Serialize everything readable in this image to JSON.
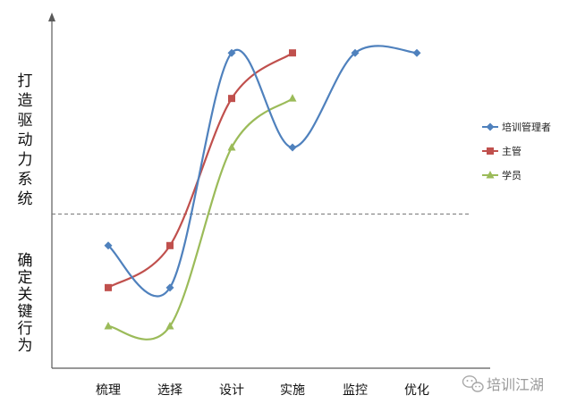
{
  "chart_data": {
    "type": "line",
    "title": "",
    "xlabel": "",
    "ylabel_upper": "打造驱动力系统",
    "ylabel_lower": "确定关键行为",
    "categories": [
      "梳理",
      "选择",
      "设计",
      "实施",
      "监控",
      "优化"
    ],
    "ylim": [
      0,
      10
    ],
    "threshold": 4.4,
    "smooth": true,
    "grid": false,
    "legend_position": "right",
    "series": [
      {
        "name": "培训管理者",
        "color": "#4f81bd",
        "marker": "diamond",
        "values": [
          3.5,
          2.3,
          9.0,
          6.3,
          9.0,
          9.0
        ]
      },
      {
        "name": "主管",
        "color": "#c0504d",
        "marker": "square",
        "values": [
          2.3,
          3.5,
          7.7,
          9.0,
          null,
          null
        ]
      },
      {
        "name": "学员",
        "color": "#9bbb59",
        "marker": "triangle",
        "values": [
          1.2,
          1.2,
          6.3,
          7.7,
          null,
          null
        ]
      }
    ]
  },
  "watermark": {
    "text": "培训江湖",
    "icon": "wechat-icon"
  }
}
